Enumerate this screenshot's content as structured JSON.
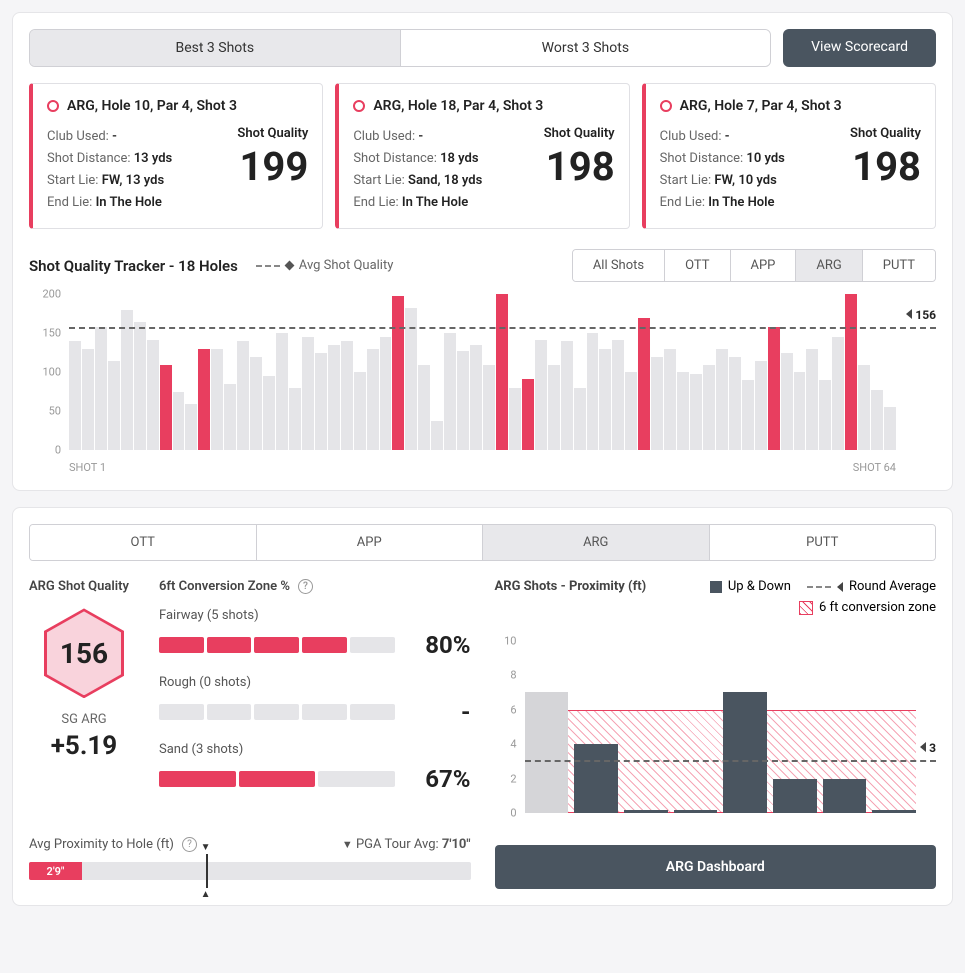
{
  "colors": {
    "accent": "#e83e5f",
    "dark": "#4a5560",
    "muted": "#e5e5e8"
  },
  "top_panel": {
    "tabs": {
      "best": "Best 3 Shots",
      "worst": "Worst 3 Shots",
      "active": "best"
    },
    "scorecard_btn": "View Scorecard",
    "shot_cards": [
      {
        "title": "ARG, Hole 10, Par 4, Shot 3",
        "club_label": "Club Used:",
        "club": "-",
        "dist_label": "Shot Distance:",
        "dist": "13 yds",
        "start_label": "Start Lie:",
        "start": "FW, 13 yds",
        "end_label": "End Lie:",
        "end": "In The Hole",
        "sq_label": "Shot Quality",
        "sq": "199"
      },
      {
        "title": "ARG, Hole 18, Par 4, Shot 3",
        "club_label": "Club Used:",
        "club": "-",
        "dist_label": "Shot Distance:",
        "dist": "18 yds",
        "start_label": "Start Lie:",
        "start": "Sand, 18 yds",
        "end_label": "End Lie:",
        "end": "In The Hole",
        "sq_label": "Shot Quality",
        "sq": "198"
      },
      {
        "title": "ARG, Hole 7, Par 4, Shot 3",
        "club_label": "Club Used:",
        "club": "-",
        "dist_label": "Shot Distance:",
        "dist": "10 yds",
        "start_label": "Start Lie:",
        "start": "FW, 10 yds",
        "end_label": "End Lie:",
        "end": "In The Hole",
        "sq_label": "Shot Quality",
        "sq": "198"
      }
    ],
    "tracker": {
      "title": "Shot Quality Tracker - 18 Holes",
      "legend": "Avg Shot Quality",
      "tabs": [
        "All Shots",
        "OTT",
        "APP",
        "ARG",
        "PUTT"
      ],
      "active_tab": "ARG",
      "ymax": 200,
      "yticks": [
        0,
        50,
        100,
        150,
        200
      ],
      "avg": 156,
      "x_start": "SHOT 1",
      "x_end": "SHOT 64",
      "bars": [
        {
          "v": 140
        },
        {
          "v": 130
        },
        {
          "v": 158
        },
        {
          "v": 115
        },
        {
          "v": 180
        },
        {
          "v": 165
        },
        {
          "v": 142
        },
        {
          "v": 110,
          "hl": true
        },
        {
          "v": 75
        },
        {
          "v": 60
        },
        {
          "v": 130,
          "hl": true
        },
        {
          "v": 130
        },
        {
          "v": 85
        },
        {
          "v": 140
        },
        {
          "v": 120
        },
        {
          "v": 95
        },
        {
          "v": 150
        },
        {
          "v": 80
        },
        {
          "v": 145
        },
        {
          "v": 125
        },
        {
          "v": 135
        },
        {
          "v": 140
        },
        {
          "v": 100
        },
        {
          "v": 130
        },
        {
          "v": 145
        },
        {
          "v": 198,
          "hl": true
        },
        {
          "v": 182
        },
        {
          "v": 110
        },
        {
          "v": 38
        },
        {
          "v": 150
        },
        {
          "v": 128
        },
        {
          "v": 135
        },
        {
          "v": 110
        },
        {
          "v": 200,
          "hl": true
        },
        {
          "v": 80
        },
        {
          "v": 92,
          "hl": true
        },
        {
          "v": 142
        },
        {
          "v": 110
        },
        {
          "v": 140
        },
        {
          "v": 80
        },
        {
          "v": 150
        },
        {
          "v": 130
        },
        {
          "v": 142
        },
        {
          "v": 100
        },
        {
          "v": 170,
          "hl": true
        },
        {
          "v": 120
        },
        {
          "v": 130
        },
        {
          "v": 100
        },
        {
          "v": 98
        },
        {
          "v": 110
        },
        {
          "v": 130
        },
        {
          "v": 120
        },
        {
          "v": 90
        },
        {
          "v": 115
        },
        {
          "v": 158,
          "hl": true
        },
        {
          "v": 125
        },
        {
          "v": 100
        },
        {
          "v": 130
        },
        {
          "v": 90
        },
        {
          "v": 145
        },
        {
          "v": 200,
          "hl": true
        },
        {
          "v": 110
        },
        {
          "v": 78
        },
        {
          "v": 55
        }
      ]
    }
  },
  "bottom_panel": {
    "tabs": [
      "OTT",
      "APP",
      "ARG",
      "PUTT"
    ],
    "active_tab": "ARG",
    "quality": {
      "label": "ARG Shot Quality",
      "hex": "156",
      "sg_label": "SG ARG",
      "sg_value": "+5.19"
    },
    "conversion": {
      "title": "6ft Conversion Zone %",
      "rows": [
        {
          "label": "Fairway (5 shots)",
          "filled": 4,
          "total": 5,
          "pct": "80%"
        },
        {
          "label": "Rough (0 shots)",
          "filled": 0,
          "total": 5,
          "pct": "-"
        },
        {
          "label": "Sand (3 shots)",
          "filled": 2,
          "total": 3,
          "pct": "67%"
        }
      ]
    },
    "slider": {
      "label": "Avg Proximity to Hole (ft)",
      "pga_label": "PGA Tour Avg:",
      "pga_value": "7'10\"",
      "value_text": "2'9\"",
      "fill_pct": 12,
      "marker_pct": 40
    },
    "proximity": {
      "title": "ARG Shots - Proximity (ft)",
      "legend_updown": "Up & Down",
      "legend_round": "Round Average",
      "legend_zone": "6 ft conversion zone",
      "ymax": 11,
      "yticks": [
        0,
        2,
        4,
        6,
        8,
        10
      ],
      "zone_top": 6,
      "avg": 3,
      "bars": [
        {
          "v": 7,
          "gray": true
        },
        {
          "v": 4
        },
        {
          "v": 0.2
        },
        {
          "v": 0.2
        },
        {
          "v": 7
        },
        {
          "v": 2
        },
        {
          "v": 2
        },
        {
          "v": 0.2
        }
      ],
      "dashboard_btn": "ARG Dashboard"
    }
  }
}
